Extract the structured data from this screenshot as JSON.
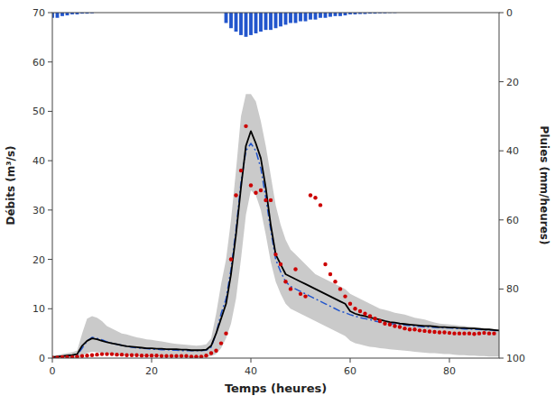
{
  "chart_data": {
    "type": "line",
    "xlabel": "Temps (heures)",
    "ylabel": "Débits (m³/s)",
    "y2label": "Pluies (mm/heures)",
    "xlim": [
      0,
      90
    ],
    "xticks": [
      0,
      20,
      40,
      60,
      80
    ],
    "ylim": [
      0,
      70
    ],
    "yticks": [
      0,
      10,
      20,
      30,
      40,
      50,
      60,
      70
    ],
    "y2lim": [
      100,
      0
    ],
    "y2ticks": [
      0,
      20,
      40,
      60,
      80,
      100
    ],
    "grid": false,
    "series": [
      {
        "type": "band",
        "color": "#b8b8b8",
        "x": [
          0,
          1,
          2,
          3,
          4,
          5,
          6,
          7,
          8,
          9,
          10,
          11,
          12,
          13,
          14,
          15,
          16,
          17,
          18,
          19,
          20,
          21,
          22,
          23,
          24,
          25,
          26,
          27,
          28,
          29,
          30,
          31,
          32,
          33,
          34,
          35,
          36,
          37,
          38,
          39,
          40,
          41,
          42,
          43,
          44,
          45,
          46,
          47,
          48,
          49,
          50,
          51,
          52,
          53,
          54,
          55,
          56,
          57,
          58,
          59,
          60,
          61,
          62,
          63,
          64,
          65,
          66,
          67,
          68,
          69,
          70,
          71,
          72,
          73,
          74,
          75,
          76,
          77,
          78,
          79,
          80,
          81,
          82,
          83,
          84,
          85,
          86,
          87,
          88,
          89,
          90
        ],
        "upper": [
          0.4,
          0.6,
          0.8,
          1.0,
          1.2,
          1.5,
          5.0,
          8.0,
          8.5,
          8.2,
          7.5,
          6.5,
          6.0,
          5.5,
          5.0,
          4.8,
          4.5,
          4.2,
          4.0,
          3.8,
          3.7,
          3.5,
          3.4,
          3.2,
          3.0,
          2.9,
          2.8,
          2.7,
          2.6,
          2.5,
          2.6,
          2.8,
          4.0,
          9.0,
          15.0,
          20.0,
          28.0,
          38.0,
          49.0,
          53.5,
          53.5,
          52.0,
          48.0,
          43.0,
          37.0,
          31.0,
          27.0,
          24.0,
          22.0,
          21.0,
          20.0,
          19.0,
          18.0,
          17.0,
          16.5,
          16.0,
          15.5,
          15.0,
          14.5,
          14.0,
          13.0,
          12.5,
          12.0,
          11.5,
          11.0,
          10.5,
          10.0,
          9.8,
          9.5,
          9.2,
          9.0,
          8.8,
          8.5,
          8.2,
          8.0,
          7.8,
          7.5,
          7.2,
          7.0,
          6.9,
          6.8,
          6.7,
          6.6,
          6.5,
          6.4,
          6.3,
          6.2,
          6.1,
          6.0,
          5.9,
          5.8
        ],
        "lower": [
          0.0,
          0.0,
          0.0,
          0.0,
          0.0,
          0.0,
          0.5,
          1.0,
          1.3,
          1.2,
          1.0,
          0.9,
          0.8,
          0.7,
          0.6,
          0.5,
          0.5,
          0.4,
          0.4,
          0.3,
          0.3,
          0.3,
          0.3,
          0.2,
          0.2,
          0.2,
          0.2,
          0.2,
          0.1,
          0.1,
          0.1,
          0.2,
          0.4,
          0.8,
          2.0,
          4.0,
          7.0,
          12.0,
          20.0,
          29.0,
          34.0,
          33.0,
          30.0,
          25.0,
          19.5,
          15.5,
          13.0,
          11.0,
          10.0,
          9.5,
          9.0,
          8.5,
          8.0,
          7.5,
          7.0,
          6.5,
          6.0,
          5.5,
          5.0,
          4.5,
          3.5,
          3.0,
          2.8,
          2.5,
          2.3,
          2.2,
          2.0,
          1.9,
          1.8,
          1.7,
          1.6,
          1.5,
          1.4,
          1.3,
          1.2,
          1.1,
          1.0,
          1.0,
          0.9,
          0.8,
          0.8,
          0.7,
          0.6,
          0.6,
          0.5,
          0.5,
          0.4,
          0.4,
          0.3,
          0.3,
          0.3
        ]
      },
      {
        "type": "bar",
        "axis": "y2",
        "color": "#2255cc",
        "x": [
          0,
          1,
          2,
          3,
          4,
          5,
          6,
          7,
          8,
          35,
          36,
          37,
          38,
          39,
          40,
          41,
          42,
          43,
          44,
          45,
          46,
          47,
          48,
          49,
          50,
          51,
          52,
          53,
          54,
          55,
          56,
          57,
          58,
          59,
          60,
          61,
          62,
          63,
          64,
          65,
          66,
          67,
          68,
          69
        ],
        "values": [
          1.5,
          1.5,
          1.0,
          0.8,
          0.5,
          0.5,
          0.3,
          0.3,
          0.2,
          3.0,
          4.5,
          5.5,
          6.5,
          7.0,
          6.5,
          6.0,
          5.5,
          5.0,
          5.0,
          4.5,
          4.0,
          3.5,
          3.0,
          3.0,
          2.5,
          2.5,
          2.0,
          2.0,
          1.5,
          1.5,
          1.2,
          1.0,
          1.0,
          0.8,
          0.5,
          0.5,
          0.4,
          0.4,
          0.3,
          0.3,
          0.2,
          0.2,
          0.1,
          0.1
        ]
      },
      {
        "type": "line",
        "color": "#2255cc",
        "line_style": "dashdot",
        "x": [
          0,
          1,
          2,
          3,
          4,
          5,
          6,
          7,
          8,
          9,
          10,
          11,
          12,
          13,
          14,
          15,
          16,
          17,
          18,
          19,
          20,
          21,
          22,
          23,
          24,
          25,
          26,
          27,
          28,
          29,
          30,
          31,
          32,
          33,
          34,
          35,
          36,
          37,
          38,
          39,
          40,
          41,
          42,
          43,
          44,
          45,
          46,
          47,
          48,
          49,
          50,
          51,
          52,
          53,
          54,
          55,
          56,
          57,
          58,
          59,
          60,
          61,
          62,
          63,
          64,
          65,
          66,
          67,
          68,
          69,
          70,
          71,
          72,
          73,
          74,
          75,
          76,
          77,
          78,
          79,
          80,
          81,
          82,
          83,
          84,
          85,
          86,
          87,
          88,
          89,
          90
        ],
        "values": [
          0.1,
          0.2,
          0.3,
          0.4,
          0.5,
          0.6,
          2.0,
          3.5,
          4.2,
          4.0,
          3.7,
          3.3,
          3.0,
          2.8,
          2.6,
          2.4,
          2.2,
          2.1,
          2.0,
          1.9,
          1.8,
          1.8,
          1.7,
          1.7,
          1.6,
          1.6,
          1.5,
          1.5,
          1.5,
          1.5,
          1.5,
          1.6,
          2.2,
          5.0,
          9.0,
          12.0,
          18.0,
          26.0,
          35.5,
          42.0,
          43.5,
          42.0,
          38.5,
          32.5,
          26.0,
          20.0,
          17.5,
          15.5,
          14.5,
          14.0,
          13.5,
          13.0,
          12.5,
          12.0,
          11.5,
          11.0,
          10.5,
          10.0,
          9.5,
          9.2,
          8.8,
          8.5,
          8.2,
          8.0,
          7.8,
          7.5,
          7.3,
          7.1,
          7.0,
          6.9,
          6.8,
          6.7,
          6.6,
          6.5,
          6.4,
          6.3,
          6.3,
          6.2,
          6.2,
          6.1,
          6.1,
          6.0,
          6.0,
          5.9,
          5.9,
          5.8,
          5.8,
          5.7,
          5.7,
          5.6,
          5.5
        ]
      },
      {
        "type": "line",
        "color": "#000000",
        "line_style": "solid",
        "x": [
          0,
          1,
          2,
          3,
          4,
          5,
          6,
          7,
          8,
          9,
          10,
          11,
          12,
          13,
          14,
          15,
          16,
          17,
          18,
          19,
          20,
          21,
          22,
          23,
          24,
          25,
          26,
          27,
          28,
          29,
          30,
          31,
          32,
          33,
          34,
          35,
          36,
          37,
          38,
          39,
          40,
          41,
          42,
          43,
          44,
          45,
          46,
          47,
          48,
          49,
          50,
          51,
          52,
          53,
          54,
          55,
          56,
          57,
          58,
          59,
          60,
          61,
          62,
          63,
          64,
          65,
          66,
          67,
          68,
          69,
          70,
          71,
          72,
          73,
          74,
          75,
          76,
          77,
          78,
          79,
          80,
          81,
          82,
          83,
          84,
          85,
          86,
          87,
          88,
          89,
          90
        ],
        "values": [
          0.2,
          0.3,
          0.4,
          0.5,
          0.6,
          0.8,
          2.5,
          3.5,
          4.0,
          3.8,
          3.5,
          3.2,
          3.0,
          2.8,
          2.6,
          2.4,
          2.3,
          2.2,
          2.1,
          2.0,
          2.0,
          1.9,
          1.9,
          1.8,
          1.8,
          1.8,
          1.7,
          1.7,
          1.6,
          1.6,
          1.6,
          1.7,
          2.5,
          5.0,
          8.0,
          11.0,
          17.0,
          25.0,
          34.5,
          43.0,
          46.0,
          43.5,
          40.5,
          34.5,
          27.0,
          21.0,
          19.0,
          17.0,
          16.5,
          16.0,
          15.5,
          15.0,
          14.5,
          14.0,
          13.5,
          13.0,
          12.5,
          12.0,
          11.5,
          11.0,
          9.5,
          9.0,
          8.7,
          8.5,
          8.2,
          8.0,
          7.8,
          7.5,
          7.3,
          7.2,
          7.0,
          6.9,
          6.8,
          6.7,
          6.6,
          6.5,
          6.5,
          6.4,
          6.3,
          6.3,
          6.2,
          6.2,
          6.1,
          6.1,
          6.0,
          6.0,
          5.9,
          5.8,
          5.8,
          5.7,
          5.6
        ]
      },
      {
        "type": "scatter",
        "color": "#cc0000",
        "marker": "dot",
        "x": [
          0,
          1,
          2,
          3,
          4,
          5,
          6,
          7,
          8,
          9,
          10,
          11,
          12,
          13,
          14,
          15,
          16,
          17,
          18,
          19,
          20,
          21,
          22,
          23,
          24,
          25,
          26,
          27,
          28,
          29,
          30,
          31,
          32,
          33,
          34,
          35,
          36,
          37,
          38,
          39,
          40,
          41,
          42,
          43,
          44,
          45,
          46,
          47,
          48,
          49,
          50,
          51,
          52,
          53,
          54,
          55,
          56,
          57,
          58,
          59,
          60,
          61,
          62,
          63,
          64,
          65,
          66,
          67,
          68,
          69,
          70,
          71,
          72,
          73,
          74,
          75,
          76,
          77,
          78,
          79,
          80,
          81,
          82,
          83,
          84,
          85,
          86,
          87,
          88,
          89
        ],
        "values": [
          0.1,
          0.1,
          0.2,
          0.2,
          0.2,
          0.3,
          0.4,
          0.5,
          0.6,
          0.7,
          0.8,
          0.8,
          0.8,
          0.7,
          0.7,
          0.6,
          0.6,
          0.6,
          0.5,
          0.5,
          0.5,
          0.5,
          0.4,
          0.4,
          0.4,
          0.4,
          0.4,
          0.4,
          0.3,
          0.3,
          0.3,
          0.5,
          1.0,
          1.5,
          3.0,
          5.0,
          20.0,
          33.0,
          38.0,
          47.0,
          35.0,
          33.5,
          34.0,
          32.0,
          32.0,
          21.0,
          19.0,
          15.5,
          14.0,
          18.0,
          13.0,
          12.5,
          33.0,
          32.5,
          31.0,
          19.0,
          17.0,
          15.5,
          14.0,
          12.5,
          11.0,
          10.0,
          9.5,
          9.0,
          8.5,
          8.0,
          7.5,
          7.0,
          6.8,
          6.5,
          6.3,
          6.0,
          5.8,
          5.8,
          5.6,
          5.5,
          5.4,
          5.3,
          5.2,
          5.2,
          5.1,
          5.0,
          5.0,
          5.0,
          5.0,
          4.9,
          5.0,
          5.1,
          5.0,
          5.0
        ]
      }
    ]
  }
}
